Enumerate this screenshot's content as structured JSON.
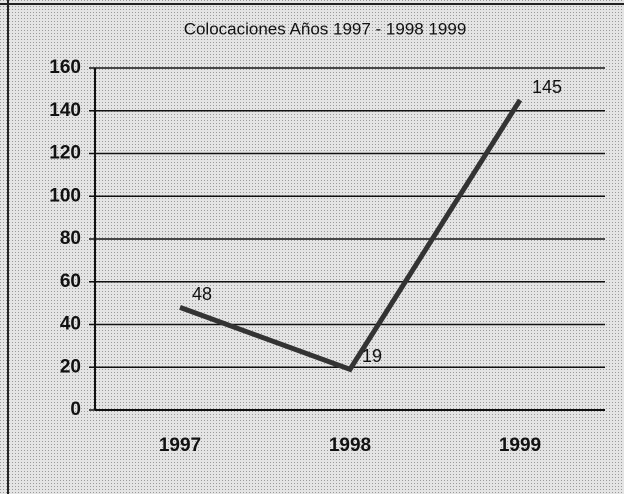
{
  "chart_data": {
    "type": "line",
    "title": "Colocaciones Años 1997 - 1998 1999",
    "categories": [
      "1997",
      "1998",
      "1999"
    ],
    "values": [
      48,
      19,
      145
    ],
    "color": "#333333",
    "ylim": [
      0,
      160
    ],
    "yticks": [
      0,
      20,
      40,
      60,
      80,
      100,
      120,
      140,
      160
    ],
    "grid": true
  }
}
